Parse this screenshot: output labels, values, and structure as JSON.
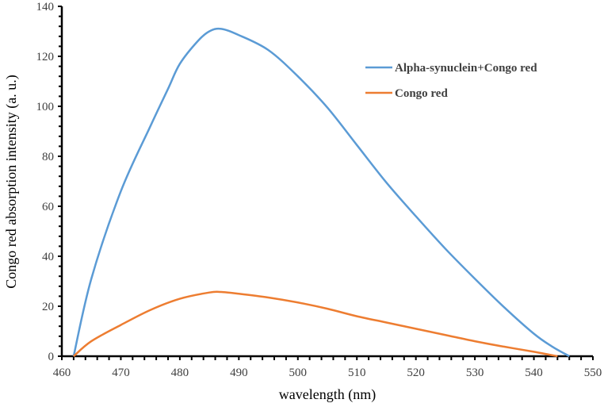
{
  "chart_data": {
    "type": "line",
    "title": "",
    "xlabel": "wavelength (nm)",
    "ylabel": "Congo red absorption intensity (a. u.)",
    "xlim": [
      460,
      550
    ],
    "ylim": [
      0,
      140
    ],
    "xticks": [
      460,
      470,
      480,
      490,
      500,
      510,
      520,
      530,
      540,
      550
    ],
    "yticks": [
      0,
      20,
      40,
      60,
      80,
      100,
      120,
      140
    ],
    "grid": false,
    "legend_position": "upper right",
    "series": [
      {
        "name": "Alpha-synuclein+Congo red",
        "color": "#5B9BD5",
        "x": [
          462,
          465,
          470,
          475,
          478,
          480,
          483,
          485,
          487,
          490,
          495,
          500,
          505,
          510,
          515,
          520,
          525,
          530,
          535,
          540,
          543,
          546
        ],
        "y": [
          0,
          31,
          66,
          92,
          107,
          117,
          126,
          130,
          131,
          128.5,
          122.5,
          112,
          99.5,
          84.5,
          69.5,
          56,
          43,
          31,
          19.5,
          9,
          4,
          0
        ]
      },
      {
        "name": "Congo red",
        "color": "#ED7D31",
        "x": [
          462,
          465,
          470,
          475,
          480,
          485,
          487,
          490,
          495,
          500,
          505,
          510,
          515,
          520,
          525,
          530,
          535,
          540,
          544
        ],
        "y": [
          0,
          6,
          12.5,
          18.5,
          23,
          25.5,
          25.7,
          25,
          23.5,
          21.5,
          19,
          16,
          13.5,
          11,
          8.5,
          6,
          3.8,
          1.8,
          0
        ]
      }
    ]
  },
  "axes": {
    "x_title": "wavelength (nm)",
    "y_title": "Congo red absorption intensity (a. u.)"
  },
  "legend": {
    "items": [
      {
        "label": "Alpha-synuclein+Congo red",
        "color": "#5B9BD5"
      },
      {
        "label": "Congo red",
        "color": "#ED7D31"
      }
    ]
  }
}
